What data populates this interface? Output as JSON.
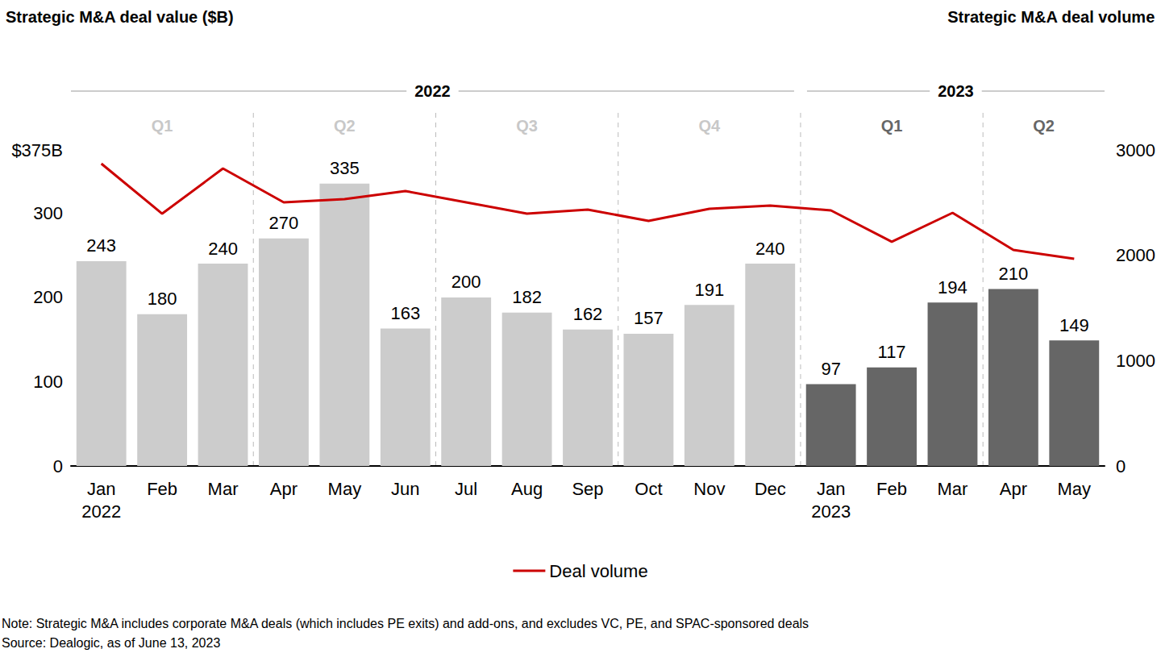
{
  "chart_data": {
    "type": "bar",
    "title": "Strategic M&A deal value ($B)",
    "y2label": "Strategic M&A deal volume",
    "categories": [
      "Jan\n2022",
      "Feb",
      "Mar",
      "Apr",
      "May",
      "Jun",
      "Jul",
      "Aug",
      "Sep",
      "Oct",
      "Nov",
      "Dec",
      "Jan\n2023",
      "Feb",
      "Mar",
      "Apr",
      "May"
    ],
    "series": [
      {
        "type": "bar",
        "values": [
          243,
          180,
          240,
          270,
          335,
          163,
          200,
          182,
          162,
          157,
          191,
          240,
          97,
          117,
          194,
          210,
          149
        ],
        "colors": [
          "#cccccc",
          "#cccccc",
          "#cccccc",
          "#cccccc",
          "#cccccc",
          "#cccccc",
          "#cccccc",
          "#cccccc",
          "#cccccc",
          "#cccccc",
          "#cccccc",
          "#cccccc",
          "#666666",
          "#666666",
          "#666666",
          "#666666",
          "#666666"
        ],
        "data_labels": true
      },
      {
        "type": "line",
        "name": "Deal volume",
        "axis": "y2",
        "color": "#cc0000",
        "values": [
          2870,
          2395,
          2824,
          2503,
          2533,
          2610,
          2503,
          2395,
          2434,
          2326,
          2441,
          2472,
          2426,
          2128,
          2403,
          2051,
          1967
        ]
      }
    ],
    "ylim": [
      0,
      375
    ],
    "yticks": [
      0,
      100,
      200,
      300,
      {
        "value": 375,
        "label": "$375B"
      }
    ],
    "y2lim": [
      0,
      3000
    ],
    "y2ticks": [
      0,
      1000,
      2000,
      3000
    ],
    "grid": false,
    "legend": "bottom",
    "year_groups": [
      {
        "label": "2022",
        "span": 12
      },
      {
        "label": "2023",
        "span": 5
      }
    ],
    "quarter_groups": [
      {
        "label": "Q1",
        "span": 3,
        "color": "#c8c8c8"
      },
      {
        "label": "Q2",
        "span": 3,
        "color": "#c8c8c8"
      },
      {
        "label": "Q3",
        "span": 3,
        "color": "#c8c8c8"
      },
      {
        "label": "Q4",
        "span": 3,
        "color": "#c8c8c8"
      },
      {
        "label": "Q1",
        "span": 3,
        "color": "#666666"
      },
      {
        "label": "Q2",
        "span": 2,
        "color": "#666666"
      }
    ],
    "notes": [
      "Note: Strategic M&A includes corporate M&A deals (which includes PE exits) and add-ons, and excludes VC, PE, and SPAC-sponsored deals",
      "Source: Dealogic, as of June 13, 2023"
    ]
  }
}
